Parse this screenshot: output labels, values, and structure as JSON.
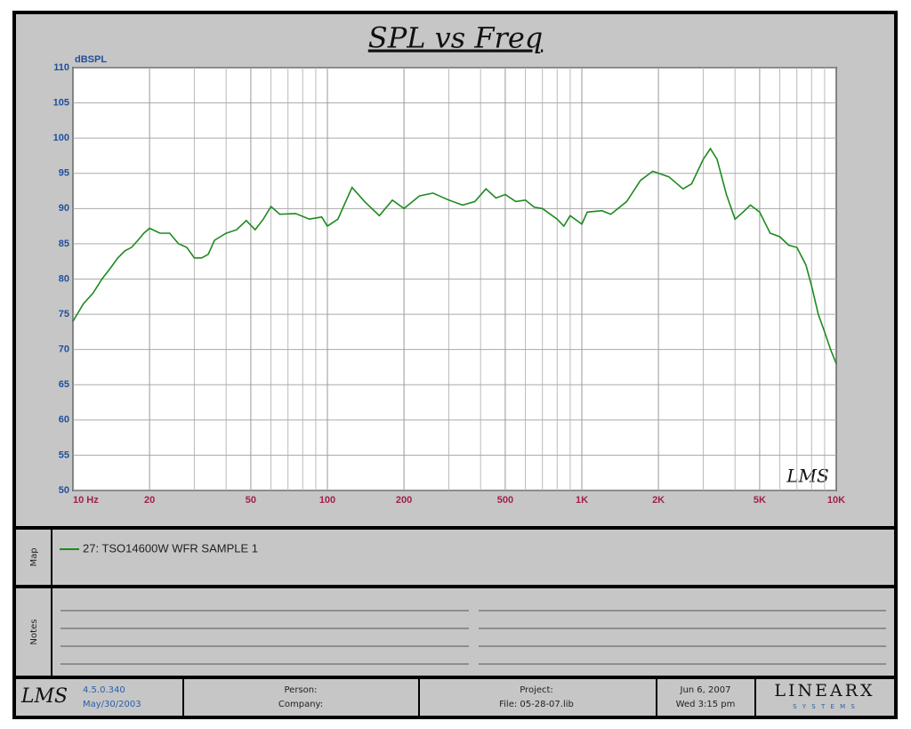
{
  "chart_data": {
    "type": "line",
    "title": "SPL vs Freq",
    "y_axis_label": "dBSPL",
    "watermark": "LMS",
    "xscale": "log",
    "xlim": [
      10,
      10000
    ],
    "ylim": [
      50,
      110
    ],
    "grid": true,
    "xticks": [
      {
        "value": 10,
        "label": "10  Hz"
      },
      20,
      50,
      100,
      200,
      500,
      {
        "value": 1000,
        "label": "1K"
      },
      {
        "value": 2000,
        "label": "2K"
      },
      {
        "value": 5000,
        "label": "5K"
      },
      {
        "value": 10000,
        "label": "10K"
      }
    ],
    "xminorticks": [
      30,
      40,
      60,
      70,
      80,
      90,
      300,
      400,
      600,
      700,
      800,
      900,
      3000,
      4000,
      6000,
      7000,
      8000,
      9000
    ],
    "yticks": [
      50,
      55,
      60,
      65,
      70,
      75,
      80,
      85,
      90,
      95,
      100,
      105,
      110
    ],
    "series": [
      {
        "name": "27: TSO14600W WFR SAMPLE 1",
        "color": "#1e8a1e",
        "x": [
          10,
          11,
          12,
          13,
          14,
          15,
          16,
          17,
          18,
          19,
          20,
          22,
          24,
          26,
          28,
          30,
          32,
          34,
          36,
          40,
          44,
          48,
          52,
          56,
          60,
          65,
          75,
          85,
          95,
          100,
          110,
          125,
          140,
          160,
          180,
          200,
          230,
          260,
          300,
          340,
          380,
          420,
          460,
          500,
          550,
          600,
          650,
          700,
          800,
          850,
          900,
          1000,
          1050,
          1200,
          1300,
          1500,
          1700,
          1900,
          2200,
          2500,
          2700,
          3000,
          3200,
          3400,
          3700,
          4000,
          4300,
          4600,
          5000,
          5500,
          6000,
          6500,
          7000,
          7600,
          8000,
          8500,
          9000,
          9500,
          10000
        ],
        "values": [
          74,
          76.5,
          78,
          80,
          81.5,
          83,
          84,
          84.5,
          85.5,
          86.5,
          87.2,
          86.5,
          86.5,
          85,
          84.5,
          83,
          83,
          83.5,
          85.5,
          86.5,
          87,
          88.3,
          87,
          88.5,
          90.3,
          89.2,
          89.3,
          88.5,
          88.8,
          87.5,
          88.5,
          93,
          91,
          89,
          91.2,
          90,
          91.8,
          92.2,
          91.2,
          90.5,
          91,
          92.8,
          91.5,
          92,
          91,
          91.2,
          90.2,
          90,
          88.5,
          87.5,
          89,
          87.8,
          89.5,
          89.7,
          89.2,
          91,
          94,
          95.3,
          94.5,
          92.8,
          93.5,
          97,
          98.5,
          97,
          92,
          88.5,
          89.5,
          90.5,
          89.5,
          86.5,
          86,
          84.8,
          84.5,
          82,
          79,
          75,
          72.5,
          70,
          68
        ]
      }
    ]
  },
  "map_label": "Map",
  "notes_label": "Notes",
  "footer": {
    "logo": "LMS",
    "version": "4.5.0.340",
    "version_date": "May/30/2003",
    "person": "Person:",
    "company": "Company:",
    "project": "Project:",
    "file": "File: 05-28-07.lib",
    "date": "Jun 6, 2007",
    "time": "Wed  3:15 pm",
    "brand": "LINEARX",
    "brand_sub": "S Y S T E M S"
  }
}
